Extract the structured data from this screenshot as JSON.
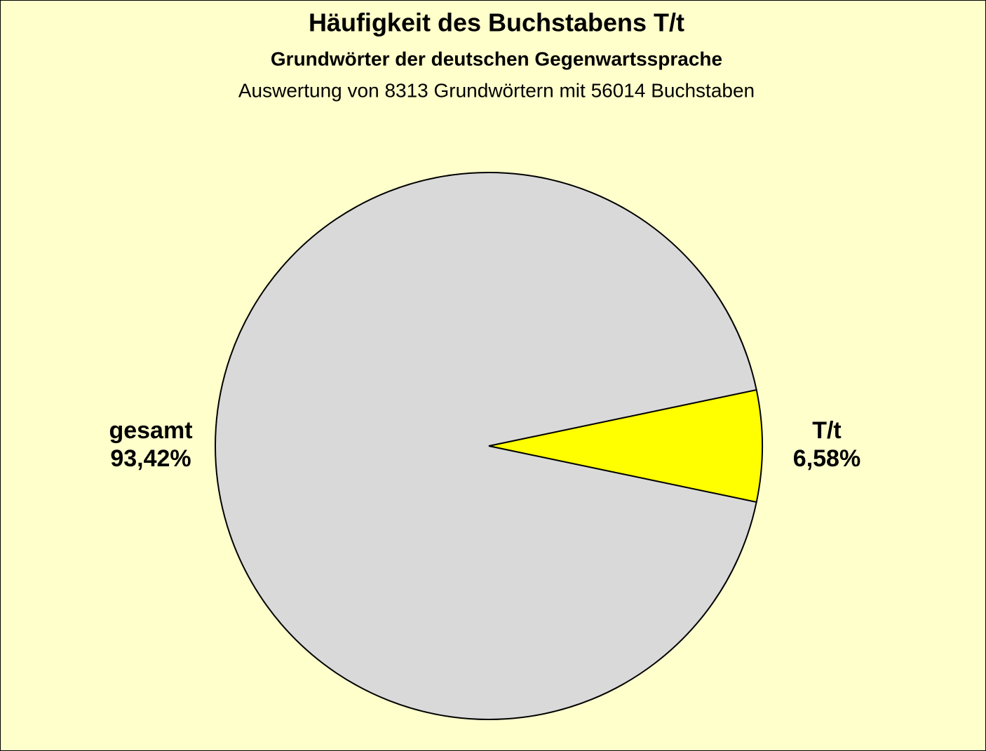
{
  "chart_data": {
    "type": "pie",
    "title": "Häufigkeit des Buchstabens T/t",
    "subtitle": "Grundwörter der deutschen Gegenwartssprache",
    "description": "Auswertung von 8313 Grundwörtern mit 56014 Buchstaben",
    "categories": [
      "T/t",
      "gesamt"
    ],
    "values": [
      6.58,
      93.42
    ],
    "value_labels": [
      "6,58%",
      "93,42%"
    ],
    "colors": [
      "#ffff00",
      "#d9d9d9"
    ]
  }
}
